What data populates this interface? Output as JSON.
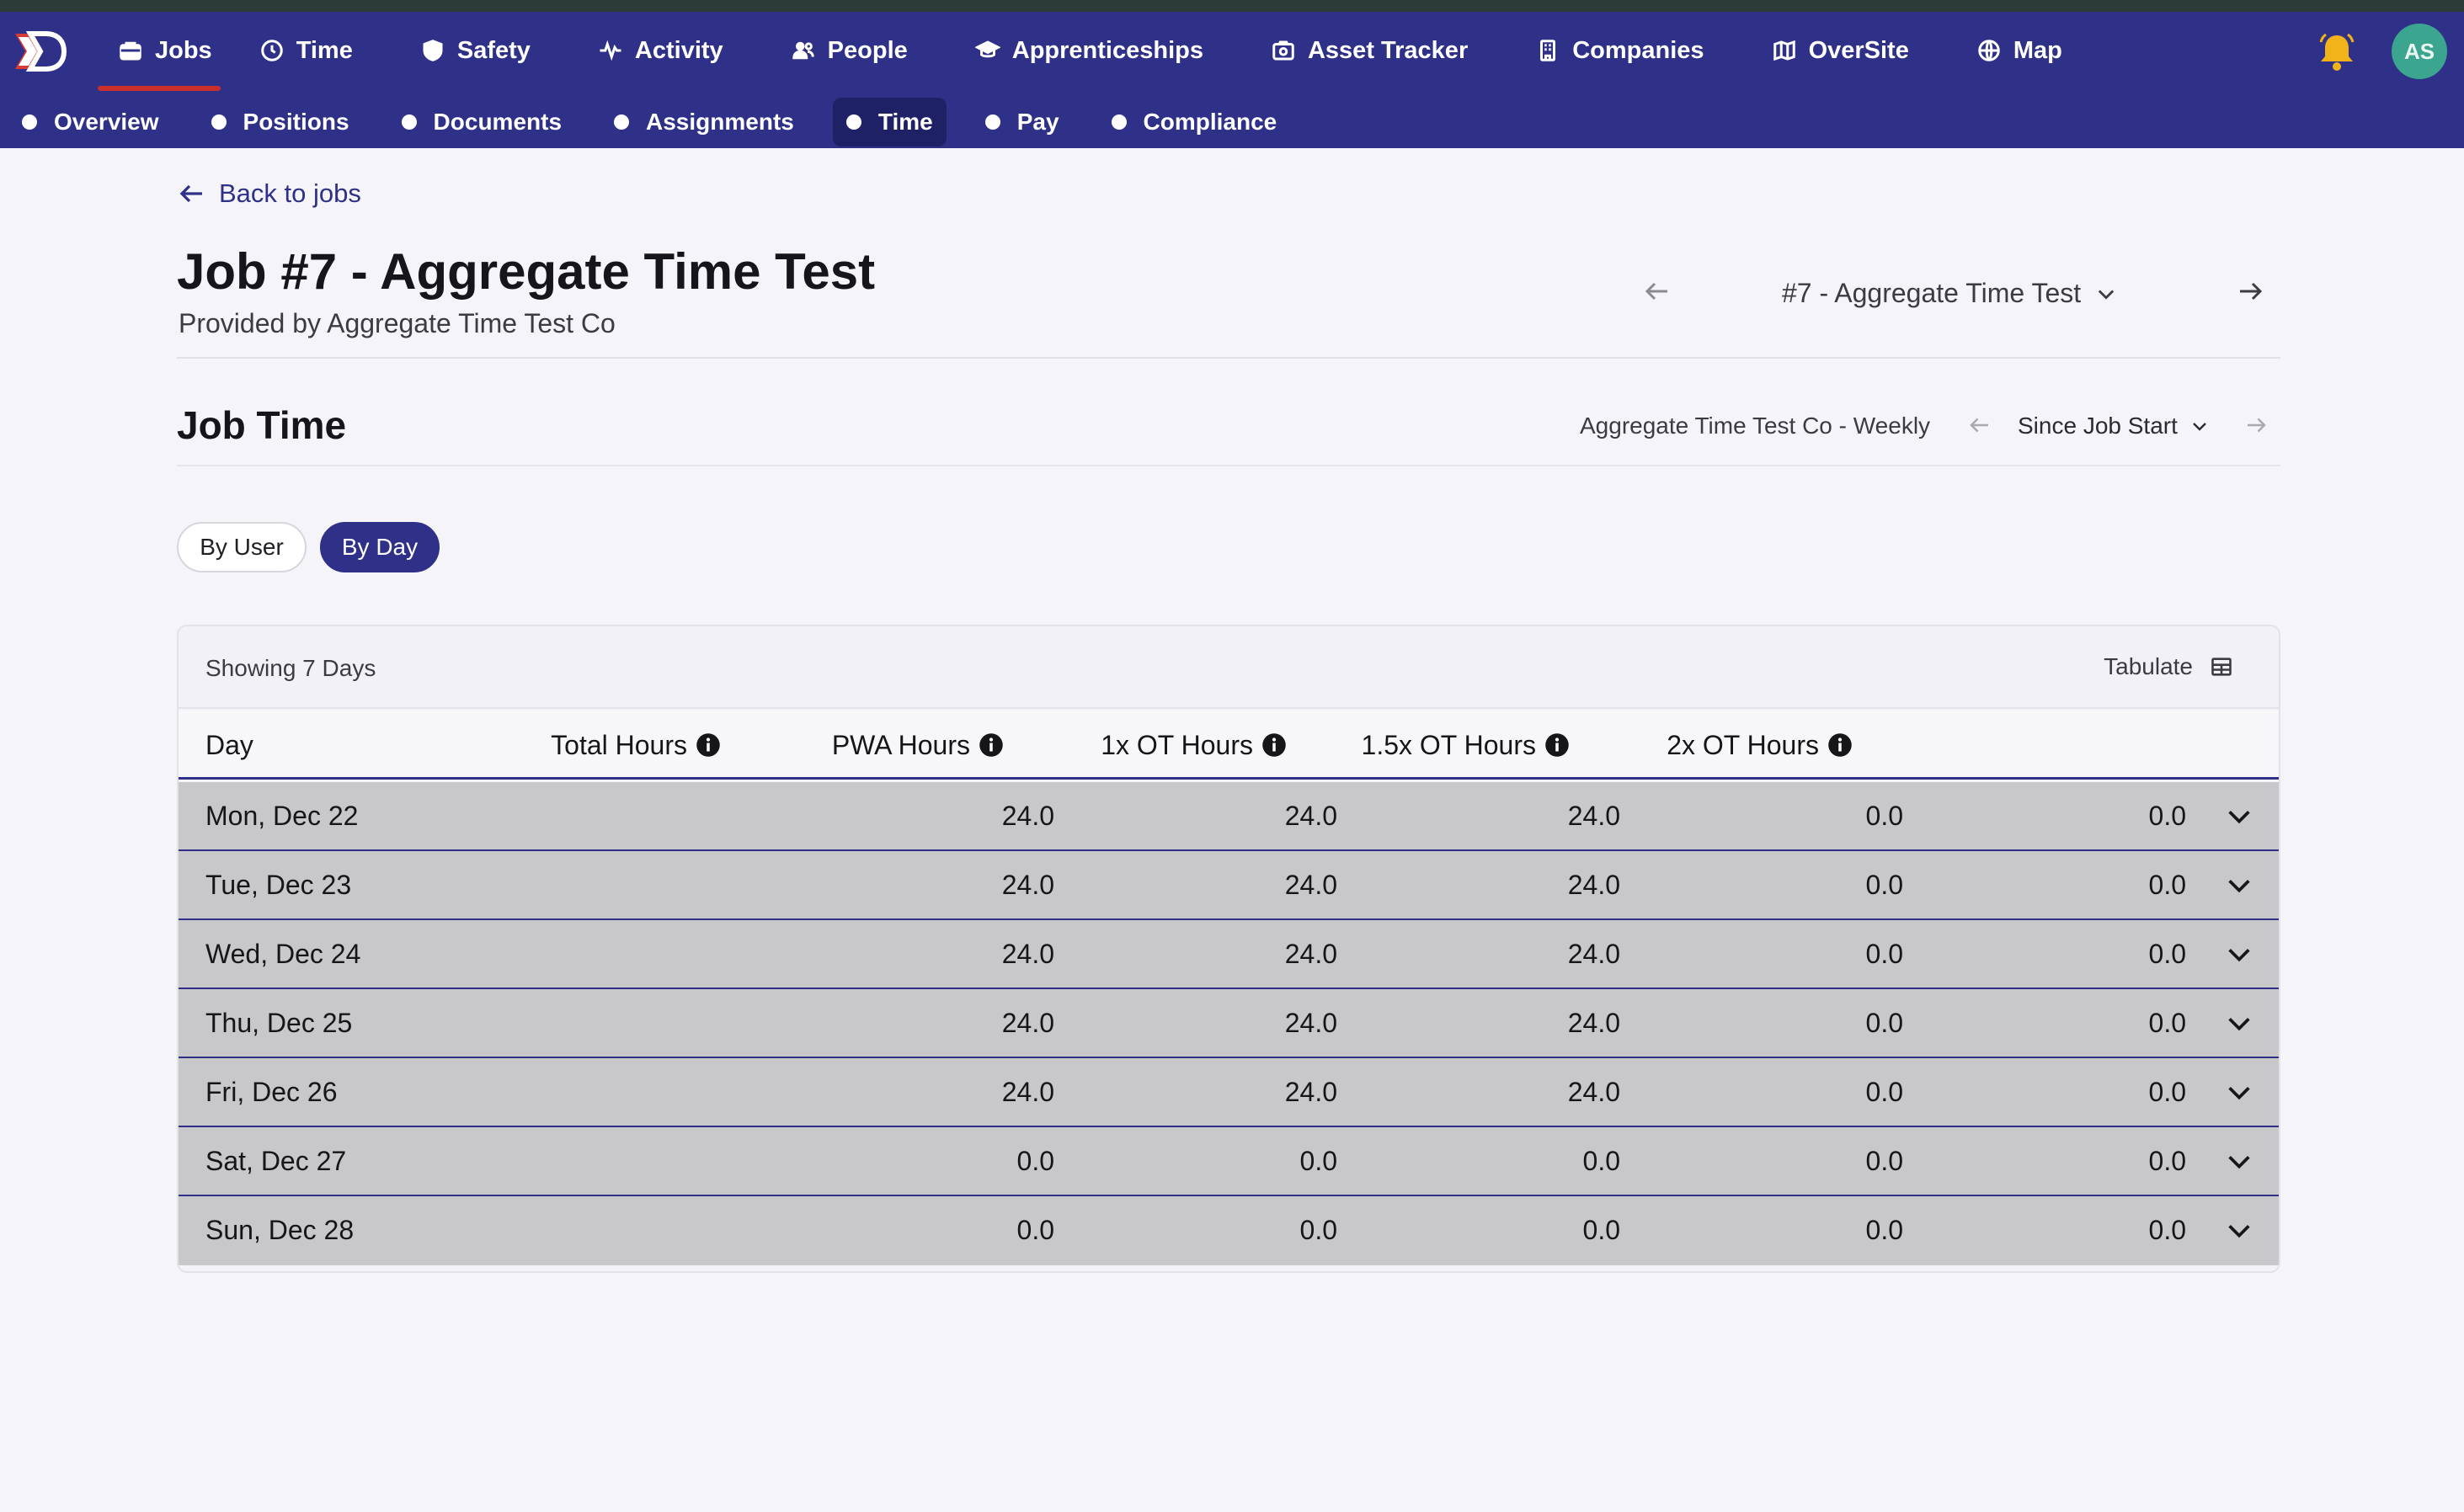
{
  "nav": {
    "items": [
      {
        "label": "Jobs",
        "icon": "briefcase-icon",
        "active": true
      },
      {
        "label": "Time",
        "icon": "clock-icon"
      },
      {
        "label": "Safety",
        "icon": "shield-icon"
      },
      {
        "label": "Activity",
        "icon": "pulse-icon"
      },
      {
        "label": "People",
        "icon": "users-icon"
      },
      {
        "label": "Apprenticeships",
        "icon": "graduation-cap-icon"
      },
      {
        "label": "Asset Tracker",
        "icon": "camera-icon"
      },
      {
        "label": "Companies",
        "icon": "building-icon"
      },
      {
        "label": "OverSite",
        "icon": "map-fold-icon"
      },
      {
        "label": "Map",
        "icon": "globe-icon"
      }
    ],
    "user_initials": "AS",
    "bell_color": "#f2b21a",
    "avatar_color": "#3ca58f"
  },
  "subnav": {
    "items": [
      {
        "label": "Overview"
      },
      {
        "label": "Positions"
      },
      {
        "label": "Documents"
      },
      {
        "label": "Assignments"
      },
      {
        "label": "Time",
        "active": true
      },
      {
        "label": "Pay"
      },
      {
        "label": "Compliance"
      }
    ]
  },
  "header": {
    "back_label": "Back to jobs",
    "title": "Job #7 - Aggregate Time Test",
    "provided_by": "Provided by Aggregate Time Test Co",
    "job_select": "#7 - Aggregate Time Test"
  },
  "section": {
    "title": "Job Time",
    "period_label": "Aggregate Time Test Co - Weekly",
    "period_select": "Since Job Start"
  },
  "toggle": {
    "by_user": "By User",
    "by_day": "By Day",
    "active": "By Day"
  },
  "table": {
    "showing": "Showing 7 Days",
    "tabulate": "Tabulate",
    "columns": [
      "Day",
      "Total Hours",
      "PWA Hours",
      "1x OT Hours",
      "1.5x OT Hours",
      "2x OT Hours"
    ],
    "rows": [
      [
        "Mon, Dec 22",
        "24.0",
        "24.0",
        "24.0",
        "0.0",
        "0.0"
      ],
      [
        "Tue, Dec 23",
        "24.0",
        "24.0",
        "24.0",
        "0.0",
        "0.0"
      ],
      [
        "Wed, Dec 24",
        "24.0",
        "24.0",
        "24.0",
        "0.0",
        "0.0"
      ],
      [
        "Thu, Dec 25",
        "24.0",
        "24.0",
        "24.0",
        "0.0",
        "0.0"
      ],
      [
        "Fri, Dec 26",
        "24.0",
        "24.0",
        "24.0",
        "0.0",
        "0.0"
      ],
      [
        "Sat, Dec 27",
        "0.0",
        "0.0",
        "0.0",
        "0.0",
        "0.0"
      ],
      [
        "Sun, Dec 28",
        "0.0",
        "0.0",
        "0.0",
        "0.0",
        "0.0"
      ]
    ]
  },
  "colors": {
    "brand": "#2f3087",
    "active_underline": "#c9302c",
    "row_bg": "#c8c7ca"
  }
}
